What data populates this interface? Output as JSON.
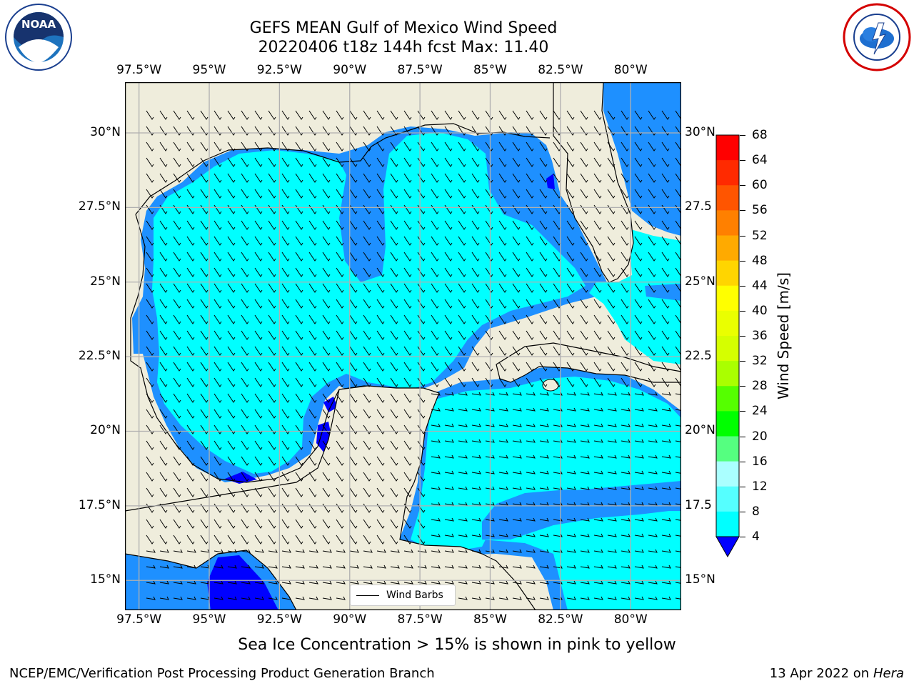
{
  "title_line1": "GEFS MEAN Gulf of Mexico Wind Speed",
  "title_line2": "20220406 t18z 144h fcst   Max: 11.40",
  "lon_labels": [
    "97.5°W",
    "95°W",
    "92.5°W",
    "90°W",
    "87.5°W",
    "85°W",
    "82.5°W",
    "80°W"
  ],
  "lon_values": [
    -97.5,
    -95,
    -92.5,
    -90,
    -87.5,
    -85,
    -82.5,
    -80
  ],
  "lat_labels": [
    "30°N",
    "27.5°N",
    "25°N",
    "22.5°N",
    "20°N",
    "17.5°N",
    "15°N"
  ],
  "lat_values": [
    30,
    27.5,
    25,
    22.5,
    20,
    17.5,
    15
  ],
  "lat_labels_right": [
    "30°N",
    "27.5",
    "25°N",
    "22.5",
    "20°N",
    "17.5",
    "15°N"
  ],
  "map_extent": {
    "lon_min": -98,
    "lon_max": -78.2,
    "lat_min": 14,
    "lat_max": 31.7
  },
  "colorbar": {
    "title": "Wind Speed [m/s]",
    "ticks": [
      "68",
      "64",
      "60",
      "56",
      "52",
      "48",
      "44",
      "40",
      "36",
      "32",
      "28",
      "24",
      "20",
      "16",
      "12",
      "8",
      "4"
    ],
    "colors": [
      "#ff0000",
      "#ff2a00",
      "#ff5500",
      "#ff8000",
      "#ffaa00",
      "#ffd500",
      "#ffff00",
      "#eaff00",
      "#d5ff00",
      "#aaff00",
      "#55ff00",
      "#00ff00",
      "#55ff80",
      "#aaffff",
      "#55ffff",
      "#00ffff",
      "#1e90ff"
    ],
    "under_color": "#0000ff"
  },
  "legend_label": "Wind Barbs",
  "caption": "Sea Ice Concentration > 15% is shown in pink to yellow",
  "footer_left": "NCEP/EMC/Verification Post Processing Product Generation Branch",
  "footer_right_date": "13 Apr 2022 on",
  "footer_right_host": "Hera",
  "logo_left_text": "NOAA",
  "colors": {
    "land": "#efeddc",
    "ocean_low": "#1e90ff",
    "ocean_mid": "#00ffff",
    "ocean_min": "#0000ff",
    "grid": "#b0b0b0"
  }
}
